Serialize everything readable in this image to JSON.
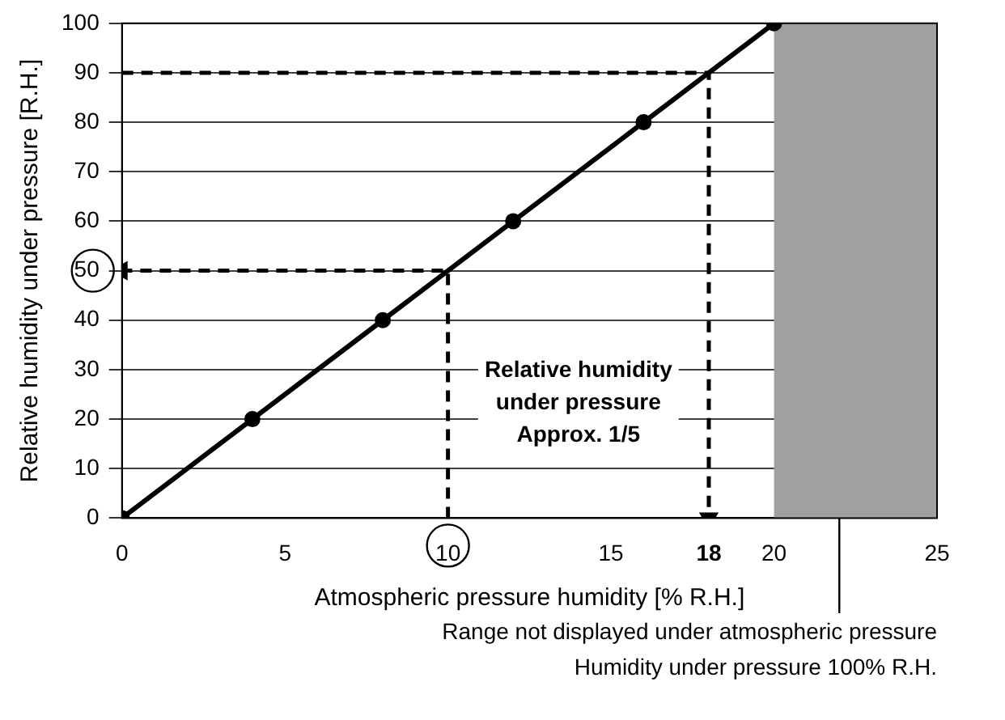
{
  "chart_data": {
    "type": "line",
    "xlabel": "Atmospheric pressure humidity [% R.H.]",
    "ylabel": "Relative humidity under pressure [R.H.]",
    "xlim": [
      0,
      25
    ],
    "xticks": [
      0,
      5,
      10,
      15,
      18,
      20,
      25
    ],
    "ylim": [
      0,
      100
    ],
    "yticks": [
      0,
      10,
      20,
      30,
      40,
      50,
      60,
      70,
      80,
      90,
      100
    ],
    "grid": "y",
    "legend": false,
    "series": [
      {
        "x": [
          0,
          4,
          8,
          12,
          16,
          20
        ],
        "values": [
          0,
          20,
          40,
          60,
          80,
          100
        ],
        "color": "#000000",
        "marker": "circle",
        "line_style": "solid"
      },
      {
        "x": [
          0,
          18,
          18
        ],
        "values": [
          90,
          90,
          0
        ],
        "color": "#000000",
        "marker": "none",
        "line_style": "dashed"
      },
      {
        "x": [
          10,
          10,
          0
        ],
        "values": [
          0,
          50,
          50
        ],
        "color": "#000000",
        "marker": "none",
        "line_style": "dashed"
      }
    ],
    "bands": [
      {
        "axis": "x",
        "from": 20,
        "to": 25,
        "color": "#a0a0a0"
      }
    ],
    "annotations": [
      "Relative humidity under pressure Approx. 1/5",
      "Range not displayed under atmospheric pressure",
      "Humidity under pressure 100% R.H."
    ]
  }
}
